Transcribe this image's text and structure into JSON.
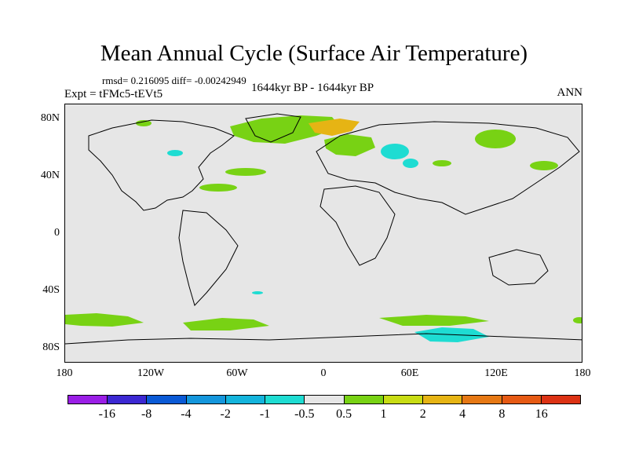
{
  "title": "Mean Annual Cycle (Surface Air Temperature)",
  "stats": "rmsd= 0.216095 diff= -0.00242949",
  "experiment": "Expt = tFMc5-tEVt5",
  "period": "1644kyr BP - 1644kyr BP",
  "season": "ANN",
  "y_axis_labels": [
    "80N",
    "40N",
    "0",
    "40S",
    "80S"
  ],
  "x_axis_labels": [
    "180",
    "120W",
    "60W",
    "0",
    "60E",
    "120E",
    "180"
  ],
  "legend": {
    "labels": [
      "-16",
      "-8",
      "-4",
      "-2",
      "-1",
      "-0.5",
      "0.5",
      "1",
      "2",
      "4",
      "8",
      "16"
    ],
    "colors": [
      "#9a1ee6",
      "#3c28d2",
      "#0a5ad6",
      "#1496dc",
      "#14b4dc",
      "#1edcd2",
      "#e6e6e6",
      "#78d214",
      "#c8dc14",
      "#e6b414",
      "#e67814",
      "#e65a14",
      "#dc3214"
    ]
  },
  "map_colors": {
    "background": "#e6e6e6",
    "coast": "#000000",
    "warm": "#78d214",
    "warm_strong": "#e6b414",
    "cool": "#1edcd2"
  }
}
